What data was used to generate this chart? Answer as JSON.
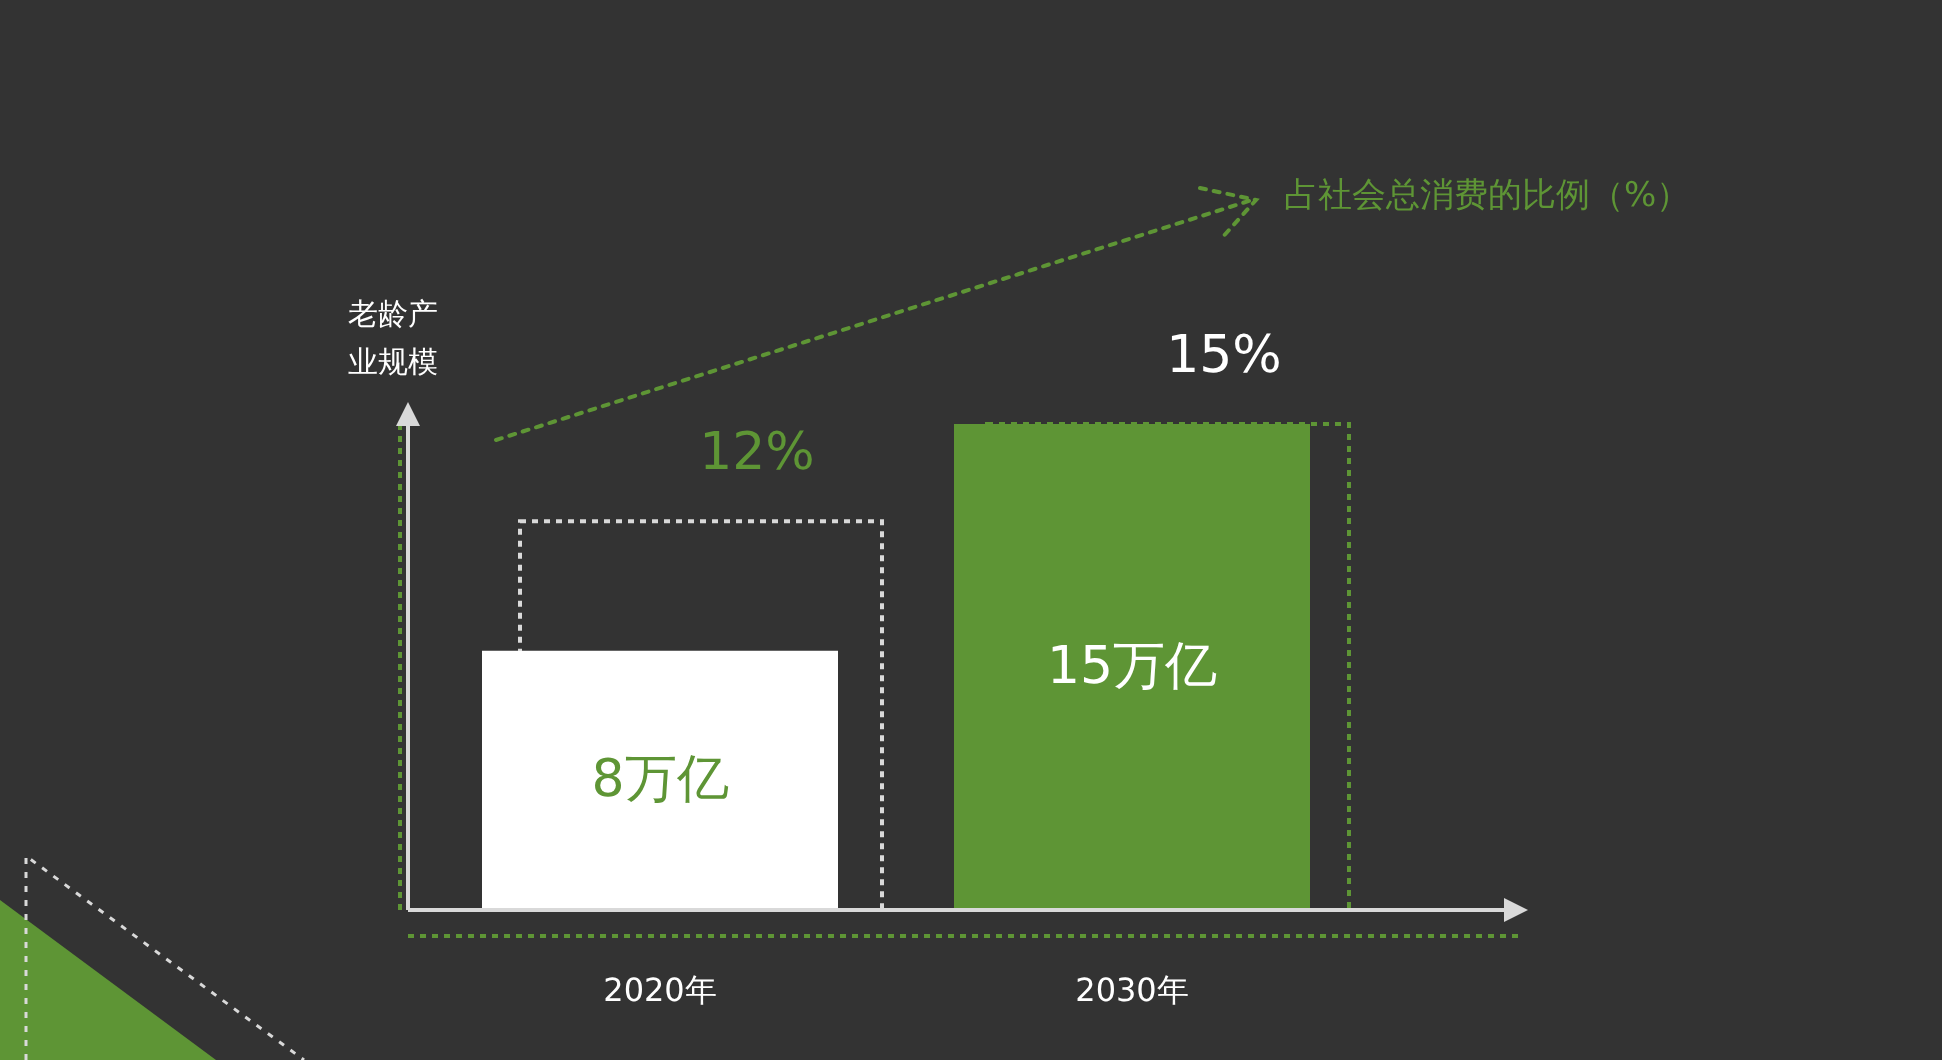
{
  "chart_data": {
    "type": "bar",
    "categories": [
      "2020年",
      "2030年"
    ],
    "ylabel": "老龄产业规模",
    "annotations": [
      "占社会总消费的比例（%）"
    ],
    "series": [
      {
        "colors": [
          "#d9d9d9",
          "#5e9535"
        ],
        "axis": "y2",
        "line_style": "dotted",
        "values": [
          12,
          15
        ],
        "value_labels": [
          "12%",
          "15%"
        ]
      },
      {
        "colors": [
          "#ffffff",
          "#5e9535"
        ],
        "values": [
          8,
          15
        ],
        "value_labels": [
          "8万亿",
          "15万亿"
        ]
      }
    ],
    "tick_labels": "x"
  }
}
